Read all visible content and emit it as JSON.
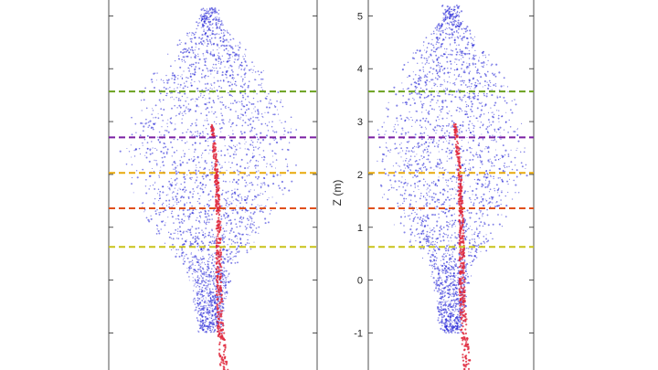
{
  "chart_data": [
    {
      "type": "scatter",
      "panel": "left",
      "description_series": [
        "leaves",
        "stem"
      ],
      "series_colors": {
        "leaves": "#1f1fd6",
        "stem": "#e0283c"
      },
      "xlabel": "",
      "ylabel": "",
      "show_tick_labels": false,
      "ylim": [
        -1.7,
        5.3
      ],
      "yticks": [
        -1,
        0,
        1,
        2,
        3,
        4,
        5
      ],
      "crown_top": 5.15,
      "crown_base": -1.0,
      "stem_base": -1.7,
      "reference_lines": [
        {
          "z": 3.57,
          "color": "#6aa11e"
        },
        {
          "z": 2.7,
          "color": "#7a1fa2"
        },
        {
          "z": 2.03,
          "color": "#e8a90c"
        },
        {
          "z": 1.36,
          "color": "#e0501c"
        },
        {
          "z": 0.63,
          "color": "#c9c31a"
        }
      ]
    },
    {
      "type": "scatter",
      "panel": "right",
      "description_series": [
        "leaves",
        "stem"
      ],
      "series_colors": {
        "leaves": "#1f1fd6",
        "stem": "#e0283c"
      },
      "xlabel": "",
      "ylabel": "Z (m)",
      "show_tick_labels": true,
      "ylim": [
        -1.7,
        5.3
      ],
      "yticks": [
        -1,
        0,
        1,
        2,
        3,
        4,
        5
      ],
      "ytick_labels": [
        "-1",
        "0",
        "1",
        "2",
        "3",
        "4",
        "5"
      ],
      "crown_top": 5.2,
      "crown_base": -1.0,
      "stem_base": -1.7,
      "reference_lines": [
        {
          "z": 3.57,
          "color": "#6aa11e"
        },
        {
          "z": 2.7,
          "color": "#7a1fa2"
        },
        {
          "z": 2.03,
          "color": "#e8a90c"
        },
        {
          "z": 1.36,
          "color": "#e0501c"
        },
        {
          "z": 0.63,
          "color": "#c9c31a"
        }
      ]
    }
  ]
}
